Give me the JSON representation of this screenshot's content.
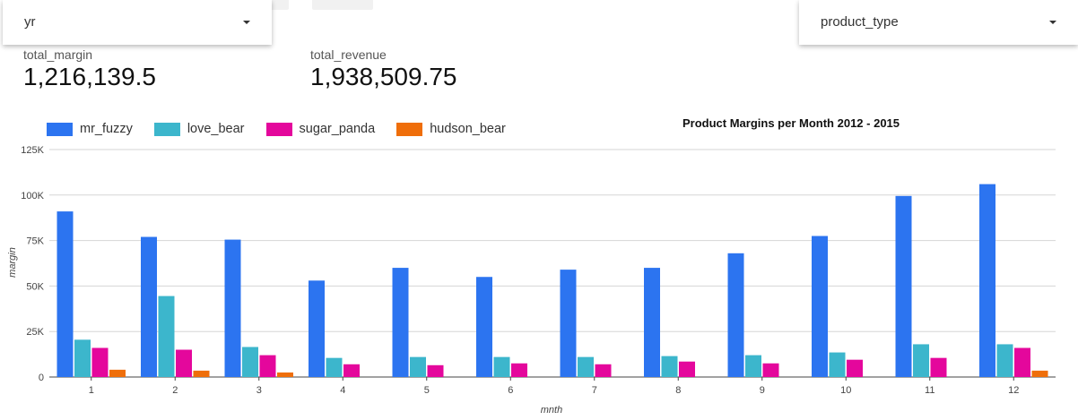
{
  "filters": {
    "year": {
      "label": "yr"
    },
    "product_type": {
      "label": "product_type"
    }
  },
  "metrics": [
    {
      "label": "total_margin",
      "value": "1,216,139.5"
    },
    {
      "label": "total_revenue",
      "value": "1,938,509.75"
    }
  ],
  "colors": {
    "mr_fuzzy": "#2c74f0",
    "love_bear": "#3cb6cc",
    "sugar_panda": "#e4079c",
    "hudson_bear": "#ef6e0a"
  },
  "chart_data": {
    "type": "bar",
    "title": "Product Margins per Month 2012 - 2015",
    "xlabel": "mnth",
    "ylabel": "margin",
    "ylim": [
      0,
      125000
    ],
    "yticks": [
      0,
      25000,
      50000,
      75000,
      100000,
      125000
    ],
    "ytick_labels": [
      "0",
      "25K",
      "50K",
      "75K",
      "100K",
      "125K"
    ],
    "grid": true,
    "legend_position": "top-left",
    "categories": [
      "1",
      "2",
      "3",
      "4",
      "5",
      "6",
      "7",
      "8",
      "9",
      "10",
      "11",
      "12"
    ],
    "series": [
      {
        "name": "mr_fuzzy",
        "values": [
          91000,
          77000,
          75500,
          53000,
          60000,
          55000,
          59000,
          60000,
          68000,
          77500,
          99500,
          106000
        ]
      },
      {
        "name": "love_bear",
        "values": [
          20500,
          44500,
          16500,
          10500,
          11000,
          11000,
          11000,
          11500,
          12000,
          13500,
          18000,
          18000
        ]
      },
      {
        "name": "sugar_panda",
        "values": [
          16000,
          15000,
          12000,
          7000,
          6500,
          7500,
          7000,
          8500,
          7500,
          9500,
          10500,
          16000
        ]
      },
      {
        "name": "hudson_bear",
        "values": [
          4000,
          3500,
          2500,
          0,
          0,
          0,
          0,
          0,
          0,
          0,
          0,
          3500
        ]
      }
    ]
  }
}
